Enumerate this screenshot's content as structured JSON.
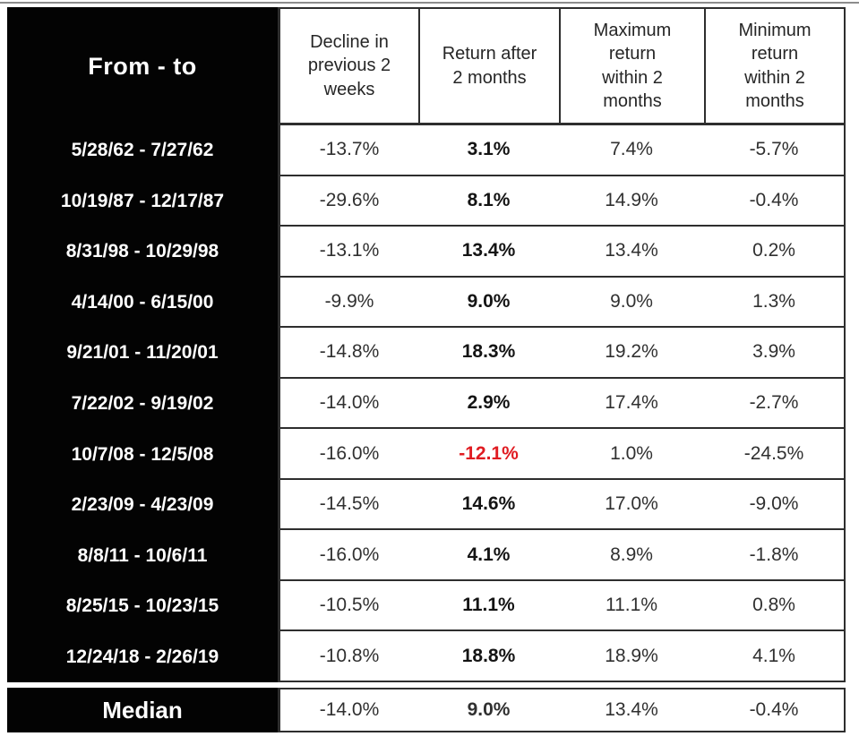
{
  "colors": {
    "black_column_bg": "#000000",
    "text_on_black": "#ffffff",
    "body_text": "#303030",
    "grid_line": "#2e2e2e",
    "negative_return_highlight": "#e01b21"
  },
  "chart_data": {
    "type": "table",
    "title": "",
    "columns": [
      {
        "id": "period",
        "label": "From - to"
      },
      {
        "id": "decline",
        "label": "Decline in\nprevious 2\nweeks"
      },
      {
        "id": "return",
        "label": "Return after\n2 months"
      },
      {
        "id": "max",
        "label": "Maximum\nreturn\nwithin 2\nmonths"
      },
      {
        "id": "min",
        "label": "Minimum\nreturn\nwithin 2\nmonths"
      }
    ],
    "rows": [
      {
        "period": "5/28/62 - 7/27/62",
        "decline": "-13.7%",
        "return": "3.1%",
        "max": "7.4%",
        "min": "-5.7%",
        "highlight": "none"
      },
      {
        "period": "10/19/87 - 12/17/87",
        "decline": "-29.6%",
        "return": "8.1%",
        "max": "14.9%",
        "min": "-0.4%",
        "highlight": "none"
      },
      {
        "period": "8/31/98 - 10/29/98",
        "decline": "-13.1%",
        "return": "13.4%",
        "max": "13.4%",
        "min": "0.2%",
        "highlight": "none"
      },
      {
        "period": "4/14/00 - 6/15/00",
        "decline": "-9.9%",
        "return": "9.0%",
        "max": "9.0%",
        "min": "1.3%",
        "highlight": "none"
      },
      {
        "period": "9/21/01 - 11/20/01",
        "decline": "-14.8%",
        "return": "18.3%",
        "max": "19.2%",
        "min": "3.9%",
        "highlight": "none"
      },
      {
        "period": "7/22/02 - 9/19/02",
        "decline": "-14.0%",
        "return": "2.9%",
        "max": "17.4%",
        "min": "-2.7%",
        "highlight": "none"
      },
      {
        "period": "10/7/08 - 12/5/08",
        "decline": "-16.0%",
        "return": "-12.1%",
        "max": "1.0%",
        "min": "-24.5%",
        "highlight": "red"
      },
      {
        "period": "2/23/09 - 4/23/09",
        "decline": "-14.5%",
        "return": "14.6%",
        "max": "17.0%",
        "min": "-9.0%",
        "highlight": "none"
      },
      {
        "period": "8/8/11 - 10/6/11",
        "decline": "-16.0%",
        "return": "4.1%",
        "max": "8.9%",
        "min": "-1.8%",
        "highlight": "none"
      },
      {
        "period": "8/25/15 - 10/23/15",
        "decline": "-10.5%",
        "return": "11.1%",
        "max": "11.1%",
        "min": "0.8%",
        "highlight": "none"
      },
      {
        "period": "12/24/18 - 2/26/19",
        "decline": "-10.8%",
        "return": "18.8%",
        "max": "18.9%",
        "min": "4.1%",
        "highlight": "none"
      }
    ],
    "median": {
      "label": "Median",
      "decline": "-14.0%",
      "return": "9.0%",
      "max": "13.4%",
      "min": "-0.4%"
    }
  }
}
